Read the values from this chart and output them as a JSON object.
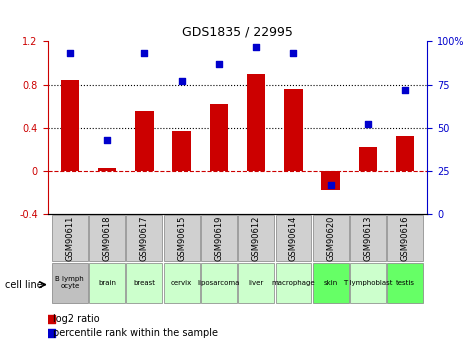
{
  "title": "GDS1835 / 22995",
  "gsm_labels": [
    "GSM90611",
    "GSM90618",
    "GSM90617",
    "GSM90615",
    "GSM90619",
    "GSM90612",
    "GSM90614",
    "GSM90620",
    "GSM90613",
    "GSM90616"
  ],
  "cell_labels": [
    "B lymph\nocyte",
    "brain",
    "breast",
    "cervix",
    "liposarcoma",
    "liver",
    "macrophage",
    "skin",
    "T lymphoblast",
    "testis"
  ],
  "cell_colors": [
    "#c0c0c0",
    "#ccffcc",
    "#ccffcc",
    "#ccffcc",
    "#ccffcc",
    "#ccffcc",
    "#ccffcc",
    "#66ff66",
    "#ccffcc",
    "#66ff66"
  ],
  "log2_ratio": [
    0.84,
    0.03,
    0.55,
    0.37,
    0.62,
    0.9,
    0.76,
    -0.18,
    0.22,
    0.32
  ],
  "pct_rank": [
    0.93,
    0.43,
    0.93,
    0.77,
    0.87,
    0.97,
    0.93,
    0.17,
    0.52,
    0.72
  ],
  "bar_color": "#cc0000",
  "dot_color": "#0000cc",
  "ylim_left": [
    -0.4,
    1.2
  ],
  "ylim_right": [
    0,
    100
  ],
  "yticks_left": [
    -0.4,
    0.0,
    0.4,
    0.8,
    1.2
  ],
  "yticks_right": [
    0,
    25,
    50,
    75,
    100
  ],
  "hlines": [
    0.4,
    0.8
  ],
  "zero_line_color": "#cc0000",
  "background_color": "#ffffff"
}
